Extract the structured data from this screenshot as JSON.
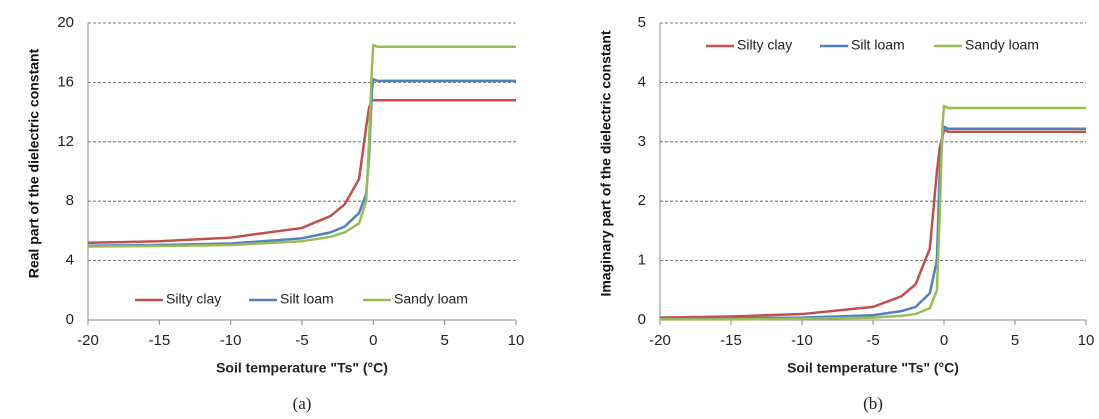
{
  "chart_data": [
    {
      "type": "line",
      "xlabel": "Soil temperature \"Ts\" (°C)",
      "ylabel": "Real part of the dielectric constant",
      "caption": "(a)",
      "x": [
        -20,
        -15,
        -10,
        -5,
        -3,
        -2,
        -1,
        -0.5,
        -0.3,
        -0.1,
        0,
        0.3,
        10
      ],
      "series": [
        {
          "name": "Silty clay",
          "color": "#c0504d",
          "values": [
            5.2,
            5.3,
            5.55,
            6.2,
            7.0,
            7.8,
            9.5,
            13,
            14.3,
            14.8,
            14.8,
            14.8,
            14.8
          ]
        },
        {
          "name": "Silt loam",
          "color": "#4f81bd",
          "values": [
            5.0,
            5.05,
            5.15,
            5.5,
            5.9,
            6.3,
            7.2,
            8.5,
            11,
            15.5,
            16.2,
            16.1,
            16.1
          ]
        },
        {
          "name": "Sandy loam",
          "color": "#9bbb59",
          "values": [
            4.95,
            4.98,
            5.05,
            5.3,
            5.6,
            5.9,
            6.5,
            8,
            12,
            17,
            18.5,
            18.4,
            18.4
          ]
        }
      ],
      "xlim": [
        -20,
        10
      ],
      "xticks": [
        -20,
        -15,
        -10,
        -5,
        0,
        5,
        10
      ],
      "ylim": [
        0,
        20
      ],
      "yticks": [
        0,
        4,
        8,
        12,
        16,
        20
      ],
      "grid": true,
      "legend": "lower center"
    },
    {
      "type": "line",
      "xlabel": "Soil temperature \"Ts\" (°C)",
      "ylabel": "Imaginary part of the dielectric constant",
      "caption": "(b)",
      "x": [
        -20,
        -15,
        -10,
        -5,
        -3,
        -2,
        -1,
        -0.5,
        -0.3,
        -0.1,
        0,
        0.3,
        10
      ],
      "series": [
        {
          "name": "Silty clay",
          "color": "#c0504d",
          "values": [
            0.04,
            0.06,
            0.1,
            0.22,
            0.4,
            0.6,
            1.2,
            2.5,
            2.9,
            3.1,
            3.2,
            3.17,
            3.17
          ]
        },
        {
          "name": "Silt loam",
          "color": "#4f81bd",
          "values": [
            0.02,
            0.03,
            0.04,
            0.08,
            0.15,
            0.22,
            0.45,
            1.0,
            2.5,
            3.1,
            3.25,
            3.22,
            3.22
          ]
        },
        {
          "name": "Sandy loam",
          "color": "#9bbb59",
          "values": [
            0.01,
            0.01,
            0.02,
            0.04,
            0.07,
            0.1,
            0.2,
            0.5,
            1.8,
            3.3,
            3.6,
            3.57,
            3.57
          ]
        }
      ],
      "xlim": [
        -20,
        10
      ],
      "xticks": [
        -20,
        -15,
        -10,
        -5,
        0,
        5,
        10
      ],
      "ylim": [
        0,
        5
      ],
      "yticks": [
        0,
        1,
        2,
        3,
        4,
        5
      ],
      "grid": true,
      "legend": "upper center"
    }
  ]
}
